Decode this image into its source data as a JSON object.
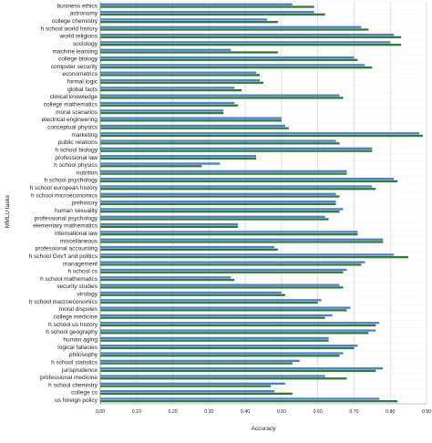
{
  "chart_data": {
    "type": "bar",
    "orientation": "horizontal",
    "title": "",
    "xlabel": "Accuracy",
    "ylabel": "MMLU tasks",
    "xlim": [
      0,
      0.9
    ],
    "xticks": [
      "0.00",
      "0.10",
      "0.20",
      "0.30",
      "0.40",
      "0.50",
      "0.60",
      "0.70",
      "0.80",
      "0.90"
    ],
    "grid": true,
    "colors": {
      "series1": "#4a7fd4",
      "series2": "#2e7d32",
      "grid": "#cfcfcf",
      "axis": "#888888"
    },
    "categories": [
      "business ethics",
      "astronomy",
      "college chemistry",
      "h school world history",
      "world religions",
      "sociology",
      "machine learning",
      "college biology",
      "computer security",
      "econometrics",
      "formal logic",
      "global facts",
      "clinical knowledge",
      "college mathematics",
      "moral scenarios",
      "electrical engineering",
      "conceptual physics",
      "marketing",
      "public relations",
      "h school biology",
      "professional law",
      "h school physics",
      "nutrition",
      "h school psychology",
      "h school european history",
      "h school microeconomics",
      "prehistory",
      "human sexuality",
      "professional psychology",
      "elementary mathematics",
      "international law",
      "miscellaneous",
      "professional accounting",
      "h school Gov't and politics",
      "management",
      "h school cs",
      "h school mathematics",
      "security studies",
      "virology",
      "h school macroeconomics",
      "moral disputes",
      "college medicine",
      "h school us history",
      "h school geography",
      "human aging",
      "logical fallacies",
      "philosophy",
      "h school statistics",
      "jurisprudence",
      "professional medicine",
      "h school chemistry",
      "college cs",
      "us foreign policy"
    ],
    "series": [
      {
        "values": [
          0.53,
          0.59,
          0.46,
          0.72,
          0.81,
          0.8,
          0.36,
          0.7,
          0.73,
          0.43,
          0.44,
          0.37,
          0.66,
          0.37,
          0.34,
          0.5,
          0.51,
          0.88,
          0.65,
          0.75,
          0.43,
          0.33,
          0.68,
          0.81,
          0.75,
          0.65,
          0.65,
          0.67,
          0.62,
          0.38,
          0.71,
          0.78,
          0.48,
          0.81,
          0.73,
          0.68,
          0.36,
          0.66,
          0.5,
          0.61,
          0.69,
          0.64,
          0.77,
          0.76,
          0.63,
          0.71,
          0.67,
          0.55,
          0.78,
          0.62,
          0.51,
          0.48,
          0.77
        ]
      },
      {
        "values": [
          0.59,
          0.62,
          0.49,
          0.74,
          0.83,
          0.83,
          0.49,
          0.71,
          0.75,
          0.44,
          0.45,
          0.39,
          0.67,
          0.38,
          0.34,
          0.5,
          0.52,
          0.89,
          0.66,
          0.75,
          0.43,
          0.28,
          0.68,
          0.82,
          0.76,
          0.66,
          0.65,
          0.66,
          0.63,
          0.38,
          0.71,
          0.78,
          0.49,
          0.85,
          0.72,
          0.67,
          0.37,
          0.67,
          0.51,
          0.6,
          0.68,
          0.62,
          0.76,
          0.74,
          0.63,
          0.7,
          0.66,
          0.53,
          0.76,
          0.68,
          0.47,
          0.53,
          0.82
        ]
      }
    ]
  }
}
